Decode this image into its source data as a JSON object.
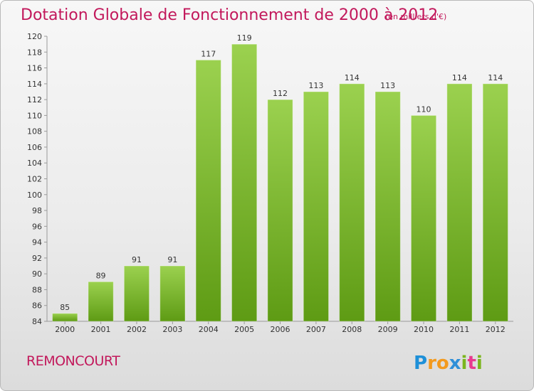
{
  "header": {
    "title": "Dotation Globale de Fonctionnement de 2000 à 2012",
    "unit": "(en milliers d'€)"
  },
  "footer": {
    "commune": "REMONCOURT",
    "brand": "Proxiti",
    "brand_letters": [
      "P",
      "r",
      "o",
      "x",
      "i",
      "t",
      "i"
    ],
    "brand_colors": [
      "#1e90d8",
      "#f39a1e",
      "#f39a1e",
      "#2e8fd8",
      "#7ab51d",
      "#e83a8f",
      "#7ab51d"
    ]
  },
  "colors": {
    "title": "#c2185b",
    "bar_top": "#9bd14f",
    "bar_bottom": "#5e9b14"
  },
  "chart_data": {
    "type": "bar",
    "title": "Dotation Globale de Fonctionnement de 2000 à 2012",
    "subtitle": "(en milliers d'€)",
    "xlabel": "",
    "ylabel": "",
    "categories": [
      "2000",
      "2001",
      "2002",
      "2003",
      "2004",
      "2005",
      "2006",
      "2007",
      "2008",
      "2009",
      "2010",
      "2011",
      "2012"
    ],
    "values": [
      85,
      89,
      91,
      91,
      117,
      119,
      112,
      113,
      114,
      113,
      110,
      114,
      114
    ],
    "ylim": [
      84,
      120
    ],
    "ytick_step": 2,
    "grid": false,
    "legend": "none"
  }
}
